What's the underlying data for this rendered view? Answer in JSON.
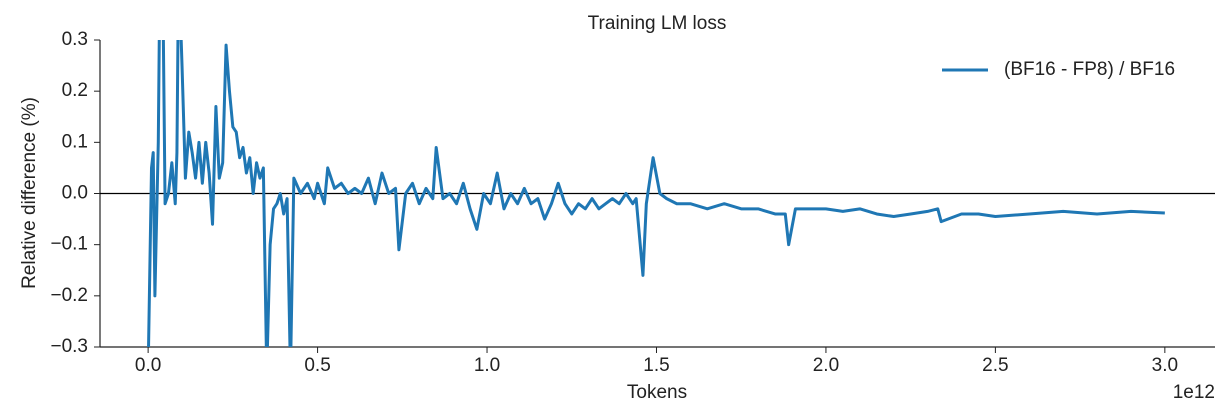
{
  "chart_data": {
    "type": "line",
    "title": "Training LM loss",
    "x_label": "Tokens",
    "x_offset_label": "1e12",
    "y_label": "Relative difference (%)",
    "x": [
      0.0,
      0.01,
      0.015,
      0.02,
      0.03,
      0.035,
      0.045,
      0.05,
      0.06,
      0.07,
      0.08,
      0.085,
      0.09,
      0.1,
      0.11,
      0.12,
      0.13,
      0.14,
      0.15,
      0.16,
      0.17,
      0.18,
      0.19,
      0.2,
      0.21,
      0.22,
      0.23,
      0.24,
      0.25,
      0.26,
      0.27,
      0.28,
      0.29,
      0.3,
      0.31,
      0.32,
      0.33,
      0.34,
      0.35,
      0.36,
      0.37,
      0.38,
      0.39,
      0.4,
      0.41,
      0.42,
      0.43,
      0.45,
      0.47,
      0.49,
      0.5,
      0.52,
      0.53,
      0.55,
      0.57,
      0.59,
      0.61,
      0.63,
      0.65,
      0.67,
      0.69,
      0.71,
      0.73,
      0.74,
      0.76,
      0.78,
      0.8,
      0.82,
      0.84,
      0.85,
      0.87,
      0.89,
      0.91,
      0.93,
      0.95,
      0.97,
      0.99,
      1.01,
      1.03,
      1.05,
      1.07,
      1.09,
      1.11,
      1.13,
      1.15,
      1.17,
      1.19,
      1.21,
      1.23,
      1.25,
      1.27,
      1.29,
      1.31,
      1.33,
      1.35,
      1.37,
      1.39,
      1.41,
      1.43,
      1.44,
      1.46,
      1.47,
      1.49,
      1.51,
      1.53,
      1.56,
      1.6,
      1.65,
      1.7,
      1.75,
      1.8,
      1.85,
      1.88,
      1.89,
      1.91,
      1.95,
      2.0,
      2.05,
      2.1,
      2.15,
      2.2,
      2.25,
      2.3,
      2.33,
      2.34,
      2.4,
      2.45,
      2.5,
      2.6,
      2.7,
      2.8,
      2.9,
      3.0
    ],
    "series": [
      {
        "name": "(BF16 - FP8) / BF16",
        "color": "#1f77b4",
        "values": [
          -0.35,
          0.05,
          0.08,
          -0.2,
          0.1,
          0.45,
          0.3,
          -0.02,
          0.0,
          0.06,
          -0.02,
          0.08,
          0.45,
          0.25,
          0.03,
          0.12,
          0.08,
          0.03,
          0.1,
          0.02,
          0.1,
          0.04,
          -0.06,
          0.17,
          0.03,
          0.06,
          0.29,
          0.2,
          0.13,
          0.12,
          0.07,
          0.09,
          0.04,
          0.07,
          0.0,
          0.06,
          0.03,
          0.05,
          -0.35,
          -0.1,
          -0.03,
          -0.02,
          0.0,
          -0.04,
          -0.01,
          -0.35,
          0.03,
          0.0,
          0.02,
          -0.01,
          0.02,
          -0.02,
          0.05,
          0.01,
          0.02,
          0.0,
          0.01,
          0.0,
          0.03,
          -0.02,
          0.04,
          0.0,
          0.01,
          -0.11,
          0.0,
          0.02,
          -0.02,
          0.01,
          -0.01,
          0.09,
          -0.01,
          0.0,
          -0.02,
          0.02,
          -0.03,
          -0.07,
          0.0,
          -0.02,
          0.04,
          -0.03,
          0.0,
          -0.02,
          0.01,
          -0.02,
          -0.01,
          -0.05,
          -0.02,
          0.02,
          -0.02,
          -0.04,
          -0.02,
          -0.03,
          -0.01,
          -0.03,
          -0.02,
          -0.01,
          -0.02,
          0.0,
          -0.02,
          -0.01,
          -0.16,
          -0.02,
          0.07,
          0.0,
          -0.01,
          -0.02,
          -0.02,
          -0.03,
          -0.02,
          -0.03,
          -0.03,
          -0.04,
          -0.04,
          -0.1,
          -0.03,
          -0.03,
          -0.03,
          -0.035,
          -0.03,
          -0.04,
          -0.045,
          -0.04,
          -0.035,
          -0.03,
          -0.055,
          -0.04,
          -0.04,
          -0.045,
          -0.04,
          -0.035,
          -0.04,
          -0.035,
          -0.038
        ]
      }
    ],
    "xlim": [
      -0.142,
      3.148
    ],
    "xticks": [
      {
        "value": 0,
        "label": "0.0"
      },
      0.5,
      {
        "value": 1,
        "label": "1.0"
      },
      1.5,
      {
        "value": 2,
        "label": "2.0"
      },
      2.5,
      {
        "value": 3,
        "label": "3.0"
      }
    ],
    "ylim": [
      -0.3,
      0.3
    ],
    "yticks": [
      {
        "value": -0.3,
        "label": "−0.3"
      },
      {
        "value": -0.2,
        "label": "−0.2"
      },
      {
        "value": -0.1,
        "label": "−0.1"
      },
      {
        "value": 0,
        "label": "0.0"
      },
      0.1,
      0.2,
      0.3
    ],
    "reference_line": 0,
    "grid": false,
    "legend_position": "upper right"
  }
}
